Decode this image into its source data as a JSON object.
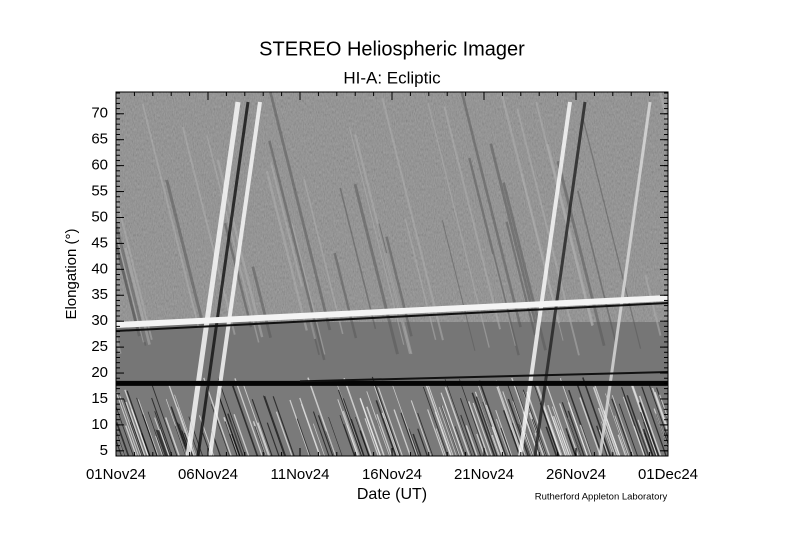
{
  "chart_data": {
    "type": "jmap",
    "title": "STEREO Heliospheric Imager",
    "subtitle": "HI-A: Ecliptic",
    "x_label": "Date (UT)",
    "y_label": "Elongation (°)",
    "credit": "Rutherford Appleton Laboratory",
    "xlim": [
      "01Nov24",
      "01Dec24"
    ],
    "xticks": [
      "01Nov24",
      "06Nov24",
      "11Nov24",
      "16Nov24",
      "21Nov24",
      "26Nov24",
      "01Dec24"
    ],
    "ylim": [
      4,
      74.2
    ],
    "yticks": [
      5,
      10,
      15,
      20,
      25,
      30,
      35,
      40,
      45,
      50,
      55,
      60,
      65,
      70
    ]
  }
}
